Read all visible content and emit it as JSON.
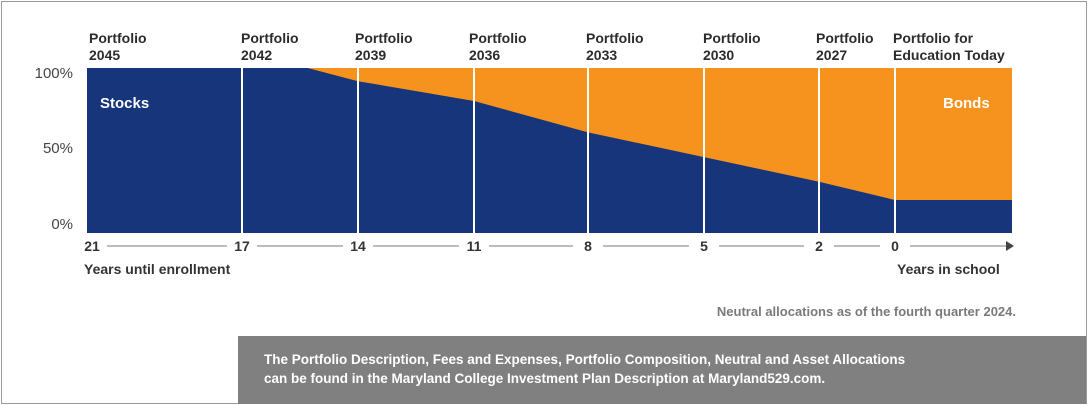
{
  "colors": {
    "stocks": "#16357b",
    "bonds": "#f6921e",
    "divider": "#ffffff",
    "axis": "#7a7a7a",
    "disclaimer_bg": "#808080"
  },
  "chart_data": {
    "type": "area",
    "x_label_left": "Years until enrollment",
    "x_label_right": "Years in school",
    "x_ticks": [
      "21",
      "17",
      "14",
      "11",
      "8",
      "5",
      "2",
      "0"
    ],
    "y_ticks": [
      "100%",
      "50%",
      "0%"
    ],
    "ylim": [
      0,
      100
    ],
    "portfolios": [
      [
        "Portfolio",
        "2045"
      ],
      [
        "Portfolio",
        "2042"
      ],
      [
        "Portfolio",
        "2039"
      ],
      [
        "Portfolio",
        "2036"
      ],
      [
        "Portfolio",
        "2033"
      ],
      [
        "Portfolio",
        "2030"
      ],
      [
        "Portfolio",
        "2027"
      ],
      [
        "Portfolio for",
        "Education Today"
      ]
    ],
    "series": [
      {
        "name": "Stocks",
        "x": [
          21,
          17,
          15.3,
          14,
          11,
          8,
          5,
          2,
          0
        ],
        "values": [
          100,
          100,
          100,
          92,
          80,
          61,
          46,
          31,
          20
        ]
      },
      {
        "name": "Bonds",
        "x": [
          21,
          17,
          15.3,
          14,
          11,
          8,
          5,
          2,
          0
        ],
        "values": [
          0,
          0,
          0,
          8,
          20,
          39,
          54,
          69,
          80
        ]
      }
    ],
    "in_school_stocks": 20,
    "grid": false,
    "legend": "inside-areas"
  },
  "note": "Neutral allocations as of the fourth quarter 2024.",
  "disclaimer": [
    "The Portfolio Description, Fees and Expenses, Portfolio Composition, Neutral and Asset Allocations",
    "can be found in the Maryland College Investment Plan Description at Maryland529.com."
  ]
}
